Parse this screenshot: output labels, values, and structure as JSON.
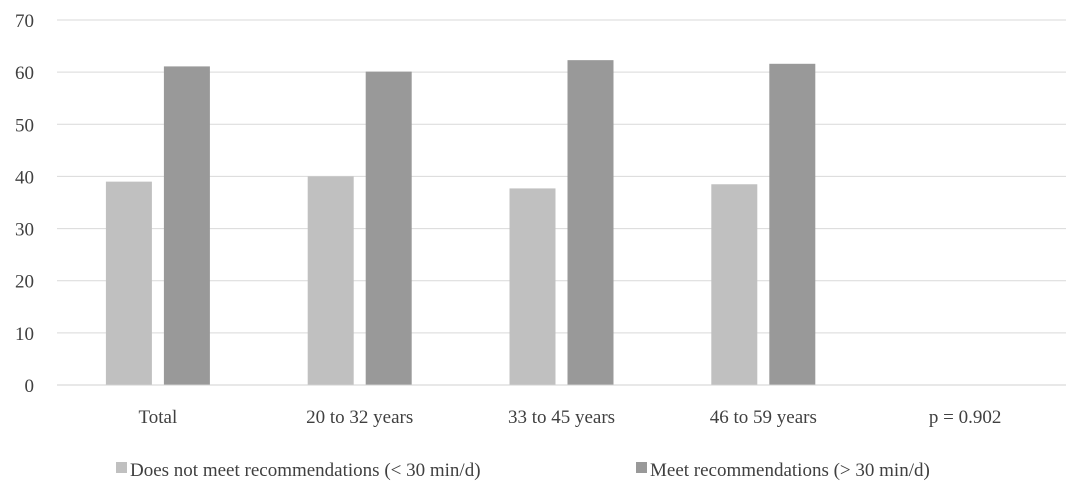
{
  "chart_data": {
    "type": "bar",
    "categories": [
      "Total",
      "20 to 32 years",
      "33 to 45 years",
      "46 to 59 years",
      "p = 0.902"
    ],
    "series": [
      {
        "name": "Does not meet recommendations (< 30 min/d)",
        "values": [
          39,
          40,
          37.7,
          38.5,
          null
        ],
        "color": "#c0c0c0"
      },
      {
        "name": "Meet recommendations (> 30 min/d)",
        "values": [
          61.1,
          60.1,
          62.3,
          61.6,
          null
        ],
        "color": "#999999"
      }
    ],
    "title": "",
    "xlabel": "",
    "ylabel": "",
    "ylim": [
      0,
      70
    ],
    "yticks": [
      "0",
      "10",
      "20",
      "30",
      "40",
      "50",
      "60",
      "70"
    ],
    "grid": true,
    "legend_position": "bottom"
  }
}
